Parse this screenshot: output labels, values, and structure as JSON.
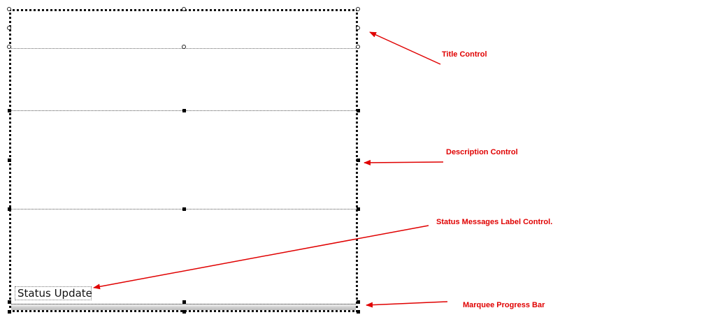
{
  "form": {
    "status_label_text": "Status Update"
  },
  "annotations": {
    "title": "Title Control",
    "description": "Description Control",
    "status": "Status Messages Label Control.",
    "progress": "Marquee Progress Bar"
  },
  "colors": {
    "annotation": "#e00000"
  }
}
